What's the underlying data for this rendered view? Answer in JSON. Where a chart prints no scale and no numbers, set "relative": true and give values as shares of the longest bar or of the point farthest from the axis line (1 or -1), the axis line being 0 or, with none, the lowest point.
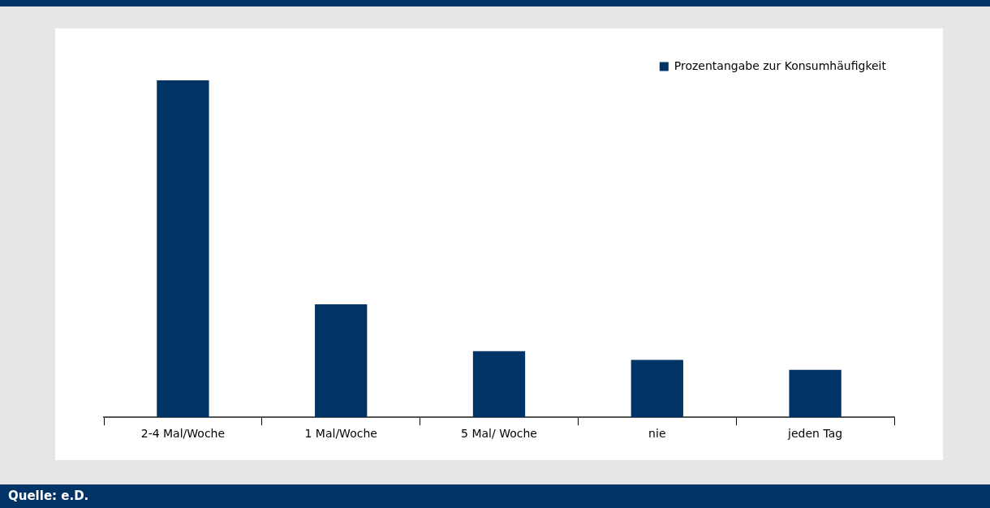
{
  "chart_data": {
    "type": "bar",
    "relative": true,
    "categories": [
      "2-4 Mal/Woche",
      "1 Mal/Woche",
      "5 Mal/ Woche",
      "nie",
      "jeden Tag"
    ],
    "series": [
      {
        "name": "Prozentangabe zur Konsumhäufigkeit",
        "color": "#003366",
        "values": [
          1,
          0.335,
          0.196,
          0.17,
          0.141
        ]
      }
    ],
    "legend": "top right",
    "grid": false,
    "annotations": [
      "Quelle: e.D."
    ]
  }
}
